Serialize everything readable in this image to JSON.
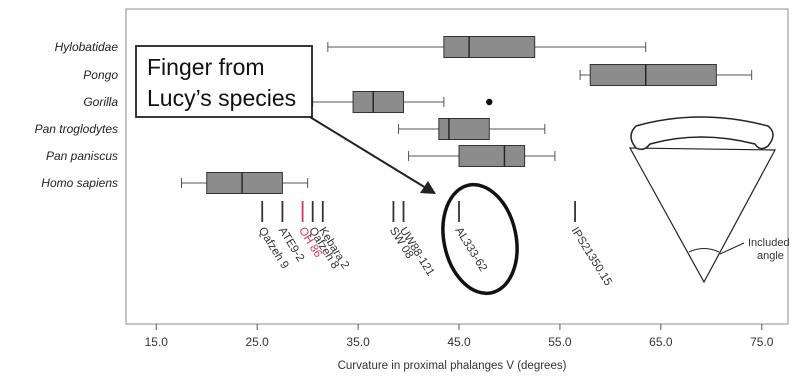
{
  "chart_data": {
    "type": "boxplot",
    "xlabel": "Curvature in proximal phalanges V (degrees)",
    "xlim": [
      11,
      79
    ],
    "xticks": [
      "15.0",
      "25.0",
      "35.0",
      "45.0",
      "55.0",
      "65.0",
      "75.0"
    ],
    "xtick_values": [
      15,
      25,
      35,
      45,
      55,
      65,
      75
    ],
    "series": [
      {
        "name": "Hylobatidae",
        "whisker_low": 32,
        "q1": 43.5,
        "median": 46,
        "q3": 52.5,
        "whisker_high": 63.5,
        "outliers": []
      },
      {
        "name": "Pongo",
        "whisker_low": 57,
        "q1": 58,
        "median": 63.5,
        "q3": 70.5,
        "whisker_high": 74,
        "outliers": []
      },
      {
        "name": "Gorilla",
        "whisker_low": 30.5,
        "q1": 34.5,
        "median": 36.5,
        "q3": 39.5,
        "whisker_high": 43.5,
        "outliers": [
          48
        ]
      },
      {
        "name": "Pan troglodytes",
        "whisker_low": 39,
        "q1": 43,
        "median": 44,
        "q3": 48,
        "whisker_high": 53.5,
        "outliers": []
      },
      {
        "name": "Pan paniscus",
        "whisker_low": 40,
        "q1": 45,
        "median": 49.5,
        "q3": 51.5,
        "whisker_high": 54.5,
        "outliers": []
      },
      {
        "name": "Homo sapiens",
        "whisker_low": 17.5,
        "q1": 20,
        "median": 23.5,
        "q3": 27.5,
        "whisker_high": 30,
        "outliers": []
      }
    ],
    "fossils": [
      {
        "label": "Qafzeh 9",
        "value": 25.5,
        "color": "#333333"
      },
      {
        "label": "ATE9-2",
        "value": 27.5,
        "color": "#333333"
      },
      {
        "label": "OH 86",
        "value": 29.5,
        "color": "#d8345f"
      },
      {
        "label": "Qafzeh 8",
        "value": 30.5,
        "color": "#333333"
      },
      {
        "label": "Kebara 2",
        "value": 31.5,
        "color": "#333333"
      },
      {
        "label": "SW 08",
        "value": 38.5,
        "color": "#333333"
      },
      {
        "label": "UW88-121",
        "value": 39.5,
        "color": "#333333"
      },
      {
        "label": "AL333-62",
        "value": 45,
        "color": "#333333"
      },
      {
        "label": "IPS21350.15",
        "value": 56.5,
        "color": "#333333"
      }
    ],
    "callout": {
      "lines": [
        "Finger from",
        "Lucy’s species"
      ],
      "target": "AL333-62"
    },
    "inset": {
      "label_lines": [
        "Included",
        "angle"
      ]
    },
    "colors": {
      "box_fill": "#8c8c8c",
      "highlight": "#d8345f",
      "frame": "#888888"
    }
  }
}
